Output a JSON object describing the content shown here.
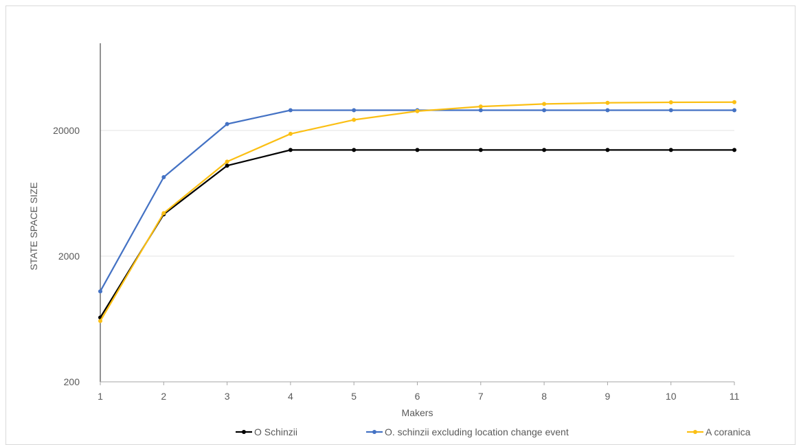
{
  "chart_data": {
    "type": "line",
    "title": "",
    "xlabel": "Makers",
    "ylabel": "STATE SPACE SIZE",
    "y_scale": "log",
    "ylim": [
      200,
      60000
    ],
    "y_ticks": [
      200,
      2000,
      20000
    ],
    "y_tick_labels": [
      "200",
      "2000",
      "20000"
    ],
    "x_ticks": [
      1,
      2,
      3,
      4,
      5,
      6,
      7,
      8,
      9,
      10,
      11
    ],
    "x_tick_labels": [
      "1",
      "2",
      "3",
      "4",
      "5",
      "6",
      "7",
      "8",
      "9",
      "10",
      "11"
    ],
    "grid": "horizontal",
    "legend_position": "bottom",
    "x": [
      1,
      2,
      3,
      4,
      5,
      6,
      7,
      8,
      9,
      10,
      11
    ],
    "series": [
      {
        "name": "O Schinzii",
        "color": "#000000",
        "values": [
          650,
          4300,
          10500,
          14000,
          14000,
          14000,
          14000,
          14000,
          14000,
          14000,
          14000
        ]
      },
      {
        "name": "O. schinzii excluding  location change event",
        "color": "#4472c4",
        "values": [
          1050,
          8500,
          22500,
          29000,
          29000,
          29000,
          29000,
          29000,
          29000,
          29000,
          29000
        ]
      },
      {
        "name": "A coranica",
        "color": "#fbbf14",
        "values": [
          610,
          4400,
          11300,
          18800,
          24300,
          28500,
          31000,
          32500,
          33200,
          33500,
          33600
        ]
      }
    ]
  }
}
